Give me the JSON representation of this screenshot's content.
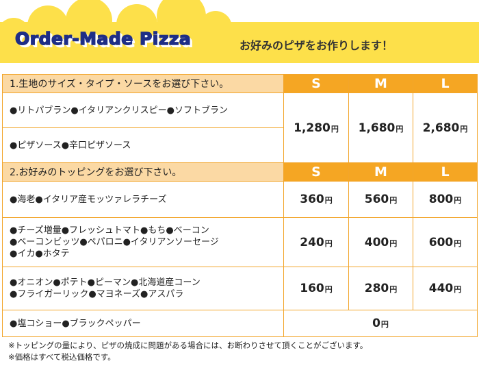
{
  "header": {
    "title_en": "Order-Made Pizza",
    "title_jp": "お好みのピザをお作りします！"
  },
  "section1": {
    "title": "1.生地のサイズ・タイプ・ソースをお選び下さい。",
    "sizes": [
      "S",
      "M",
      "L"
    ],
    "rows": [
      {
        "lines": [
          "●リトパブラン●イタリアンクリスピー●ソフトブラン"
        ]
      },
      {
        "lines": [
          "●ピザソース●辛口ピザソース"
        ]
      }
    ],
    "prices": [
      "1,280",
      "1,680",
      "2,680"
    ]
  },
  "section2": {
    "title": "2.お好みのトッピングをお選び下さい。",
    "sizes": [
      "S",
      "M",
      "L"
    ],
    "rows": [
      {
        "lines": [
          "●海老●イタリア産モッツァレラチーズ"
        ],
        "prices": [
          "360",
          "560",
          "800"
        ]
      },
      {
        "lines": [
          "●チーズ増量●フレッシュトマト●もち●ベーコン",
          "●ベーコンビッツ●ペパロニ●イタリアンソーセージ",
          "●イカ●ホタテ"
        ],
        "prices": [
          "240",
          "400",
          "600"
        ]
      },
      {
        "lines": [
          "●オニオン●ポテト●ピーマン●北海道産コーン",
          "●フライガーリック●マヨネーズ●アスパラ"
        ],
        "prices": [
          "160",
          "280",
          "440"
        ]
      },
      {
        "lines": [
          "●塩コショー●ブラックペッパー"
        ],
        "price_all": "0"
      }
    ]
  },
  "yen": "円",
  "notes": [
    "※トッピングの量により、ピザの焼成に問題がある場合には、お断わりさせて頂くことがございます。",
    "※価格はすべて税込価格です。"
  ],
  "colors": {
    "header_yellow": "#fde04a",
    "title_navy": "#1f2e86",
    "table_border": "#f2a52a",
    "section_title_bg": "#fbd9a4",
    "size_header_bg": "#f5a623"
  }
}
